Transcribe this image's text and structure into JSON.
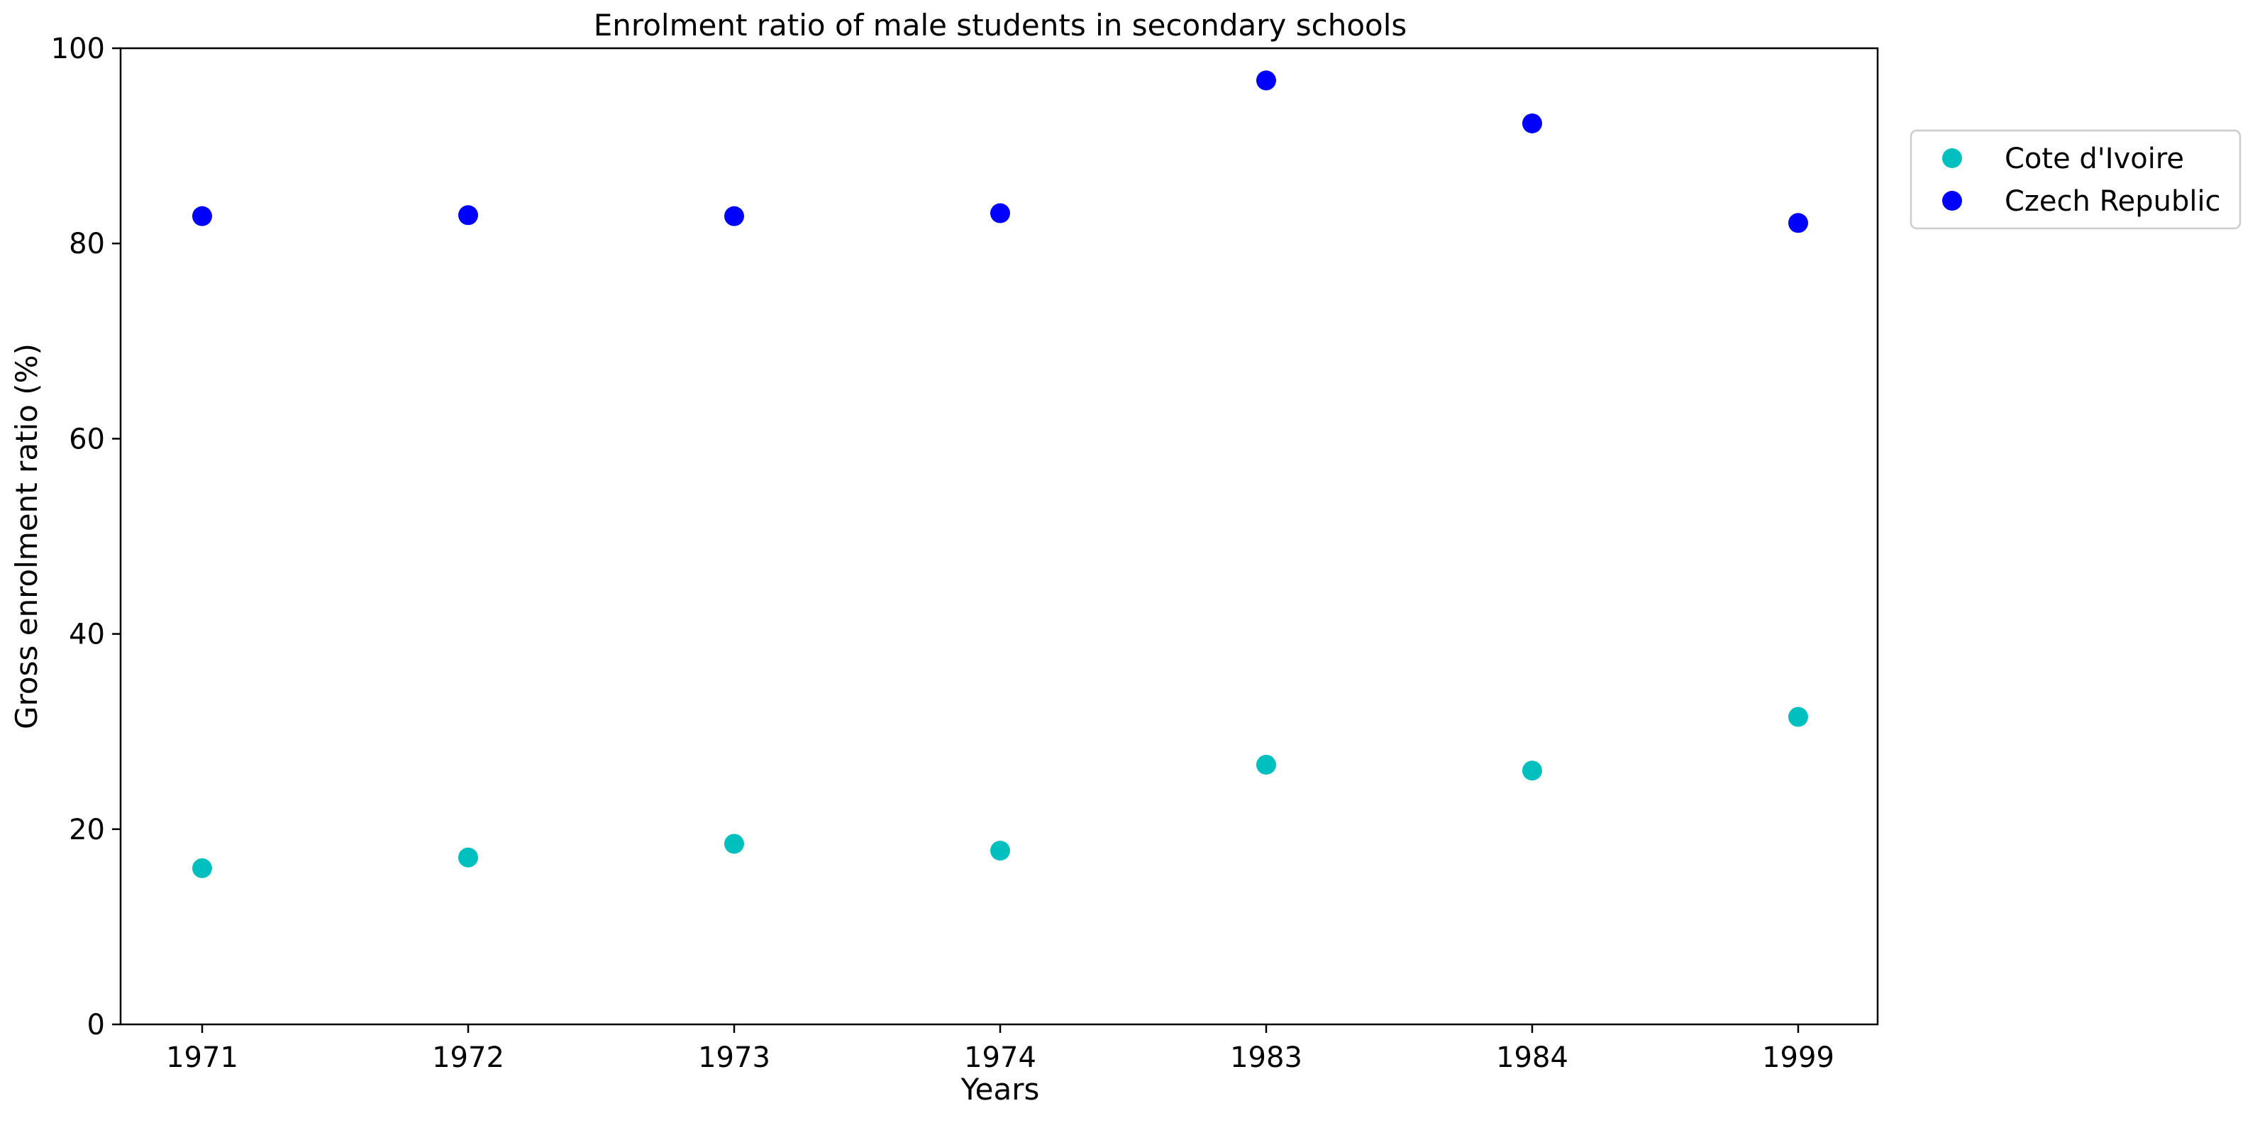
{
  "chart_data": {
    "type": "scatter",
    "title": "Enrolment ratio of male students in secondary schools",
    "xlabel": "Years",
    "ylabel": "Gross enrolment ratio (%)",
    "categories": [
      "1971",
      "1972",
      "1973",
      "1974",
      "1983",
      "1984",
      "1999"
    ],
    "ylim": [
      0,
      100
    ],
    "yticks": [
      0,
      20,
      40,
      60,
      80,
      100
    ],
    "grid": false,
    "legend_position": "outside-top-right",
    "series": [
      {
        "name": "Cote d'Ivoire",
        "color": "#00bfbf",
        "values": [
          16.0,
          17.1,
          18.5,
          17.8,
          26.6,
          26.0,
          31.5
        ]
      },
      {
        "name": "Czech Republic",
        "color": "#0000ff",
        "values": [
          82.8,
          82.9,
          82.8,
          83.1,
          96.7,
          92.3,
          82.1
        ]
      }
    ]
  }
}
